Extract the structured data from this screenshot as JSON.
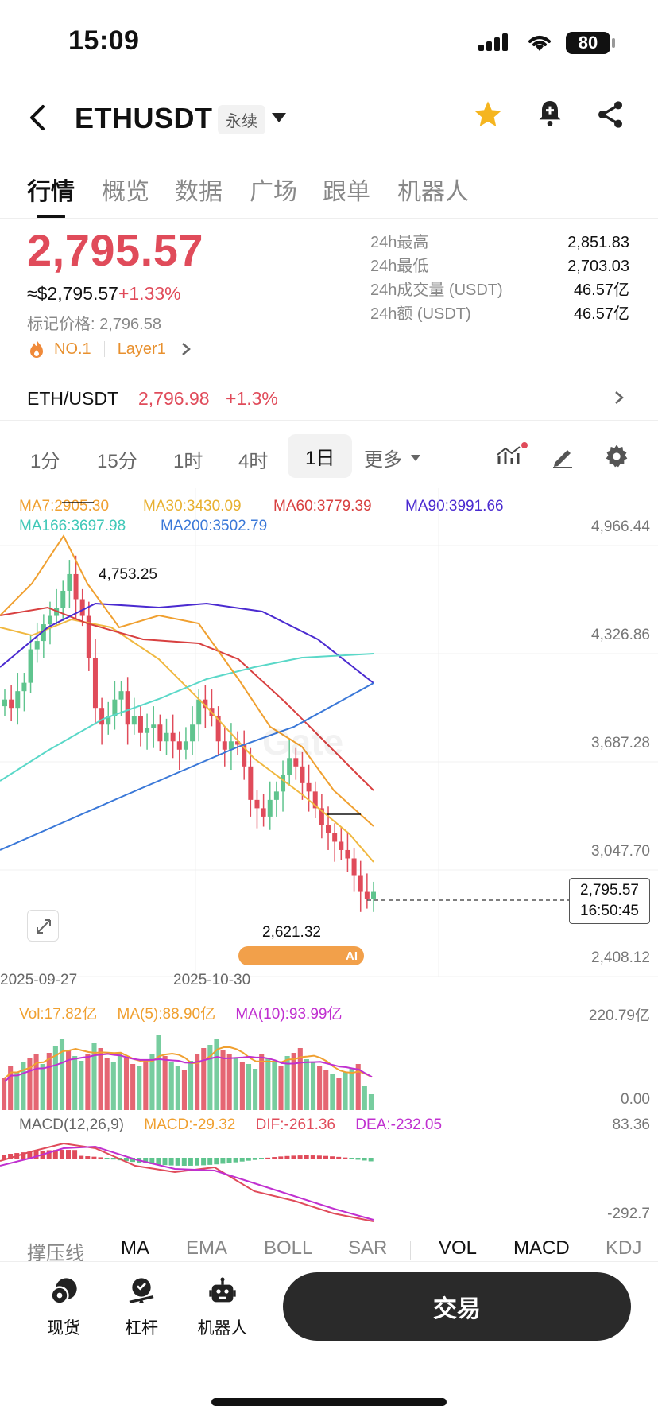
{
  "status_bar": {
    "time": "15:09",
    "battery": "80"
  },
  "header": {
    "symbol": "ETHUSDT",
    "contract_tag": "永续"
  },
  "tabs": [
    "行情",
    "概览",
    "数据",
    "广场",
    "跟单",
    "机器人"
  ],
  "price": {
    "last": "2,795.57",
    "usd_equiv": "≈$2,795.57",
    "change": "+1.33%",
    "mark_label": "标记价格:",
    "mark_value": "2,796.58",
    "rank": "NO.1",
    "category": "Layer1"
  },
  "stats": [
    {
      "label": "24h最高",
      "value": "2,851.83"
    },
    {
      "label": "24h最低",
      "value": "2,703.03"
    },
    {
      "label": "24h成交量 (USDT)",
      "value": "46.57亿"
    },
    {
      "label": "24h额 (USDT)",
      "value": "46.57亿"
    }
  ],
  "spot_row": {
    "pair": "ETH/USDT",
    "price": "2,796.98",
    "change": "+1.3%"
  },
  "timeframes": [
    "1分",
    "15分",
    "1时",
    "4时",
    "1日",
    "更多"
  ],
  "ma_legend": {
    "ma7": "MA7:2905.30",
    "ma30": "MA30:3430.09",
    "ma60": "MA60:3779.39",
    "ma90": "MA90:3991.66",
    "ma166": "MA166:3697.98",
    "ma200": "MA200:3502.79"
  },
  "colors": {
    "up": "#5fc48e",
    "down": "#e04b5a",
    "ma7": "#f0a030",
    "ma30": "#f0b840",
    "ma60": "#d84040",
    "ma90": "#4a2ad0",
    "ma166": "#5ad8c8",
    "ma200": "#3a78d8",
    "vol_ma5": "#f0a030",
    "vol_ma10": "#c030d0"
  },
  "price_axis": [
    "4,966.44",
    "4,326.86",
    "3,687.28",
    "3,047.70",
    "2,408.12"
  ],
  "current_price_tag": {
    "price": "2,795.57",
    "countdown": "16:50:45"
  },
  "annotations": {
    "high": "4,753.25",
    "low": "2,621.32"
  },
  "date_axis": [
    "2025-09-27",
    "2025-10-30"
  ],
  "volume": {
    "vol": "Vol:17.82亿",
    "ma5": "MA(5):88.90亿",
    "ma10": "MA(10):93.99亿",
    "axis_top": "220.79亿",
    "axis_bottom": "0.00"
  },
  "macd": {
    "title": "MACD(12,26,9)",
    "macd": "MACD:-29.32",
    "dif": "DIF:-261.36",
    "dea": "DEA:-232.05",
    "axis_top": "83.36",
    "axis_bottom": "-292.7"
  },
  "indicator_tabs": [
    "撑压线",
    "MA",
    "EMA",
    "BOLL",
    "SAR",
    "VOL",
    "MACD",
    "KDJ"
  ],
  "bottom_bar": {
    "spot": "现货",
    "leverage": "杠杆",
    "bot": "机器人",
    "trade": "交易"
  },
  "watermark": "Gate",
  "ai_badge": "AI"
}
